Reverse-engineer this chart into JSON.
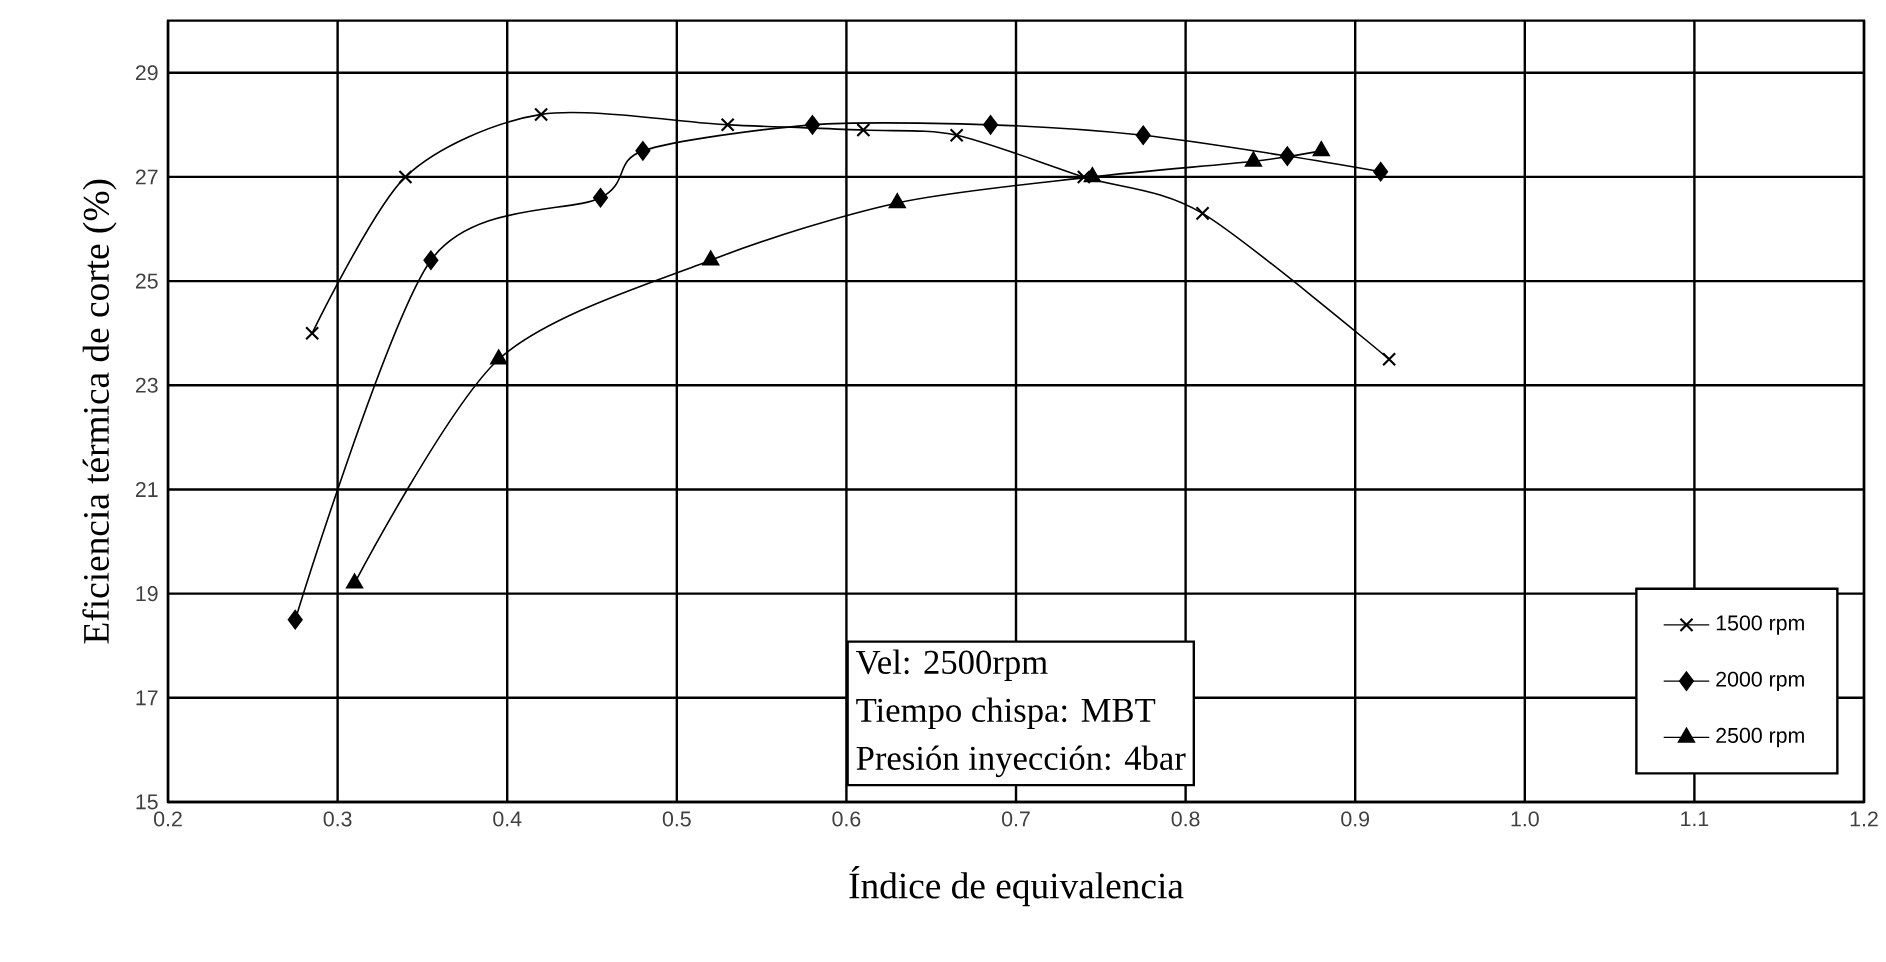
{
  "chart_data": {
    "type": "line",
    "xlabel": "Índice de equivalencia",
    "ylabel": "Eficiencia térmica de corte (%)",
    "xlim": [
      0.2,
      1.2
    ],
    "xticks": [
      0.2,
      0.3,
      0.4,
      0.5,
      0.6,
      0.7,
      0.8,
      0.9,
      {
        "value": 1.0,
        "label": "1.0"
      },
      1.1,
      1.2
    ],
    "ylim": [
      15,
      30
    ],
    "yticks": [
      15,
      17,
      19,
      21,
      23,
      25,
      27,
      29
    ],
    "grid": true,
    "legend": "bottom right",
    "annotations": [
      "Vel:                2500rpm",
      "Tiempo chispa: MBT",
      "Presión inyección: 4bar"
    ],
    "series": [
      {
        "name": "1500 rpm",
        "color": "#000000",
        "marker": "cross",
        "x": [
          0.285,
          0.34,
          0.42,
          0.53,
          0.61,
          0.665,
          0.74,
          0.81,
          0.92
        ],
        "values": [
          24.0,
          27.0,
          28.2,
          28.0,
          27.9,
          27.8,
          27.0,
          26.3,
          23.5
        ]
      },
      {
        "name": "2000 rpm",
        "color": "#000000",
        "marker": "diamond",
        "x": [
          0.275,
          0.355,
          0.455,
          0.48,
          0.58,
          0.685,
          0.775,
          0.86,
          0.915
        ],
        "values": [
          18.5,
          25.4,
          26.6,
          27.5,
          28.0,
          28.0,
          27.8,
          27.4,
          27.1
        ]
      },
      {
        "name": "2500 rpm",
        "color": "#000000",
        "marker": "triangle",
        "x": [
          0.31,
          0.395,
          0.52,
          0.63,
          0.745,
          0.84,
          0.88
        ],
        "values": [
          19.2,
          23.5,
          25.4,
          26.5,
          27.0,
          27.3,
          27.5
        ]
      }
    ]
  }
}
